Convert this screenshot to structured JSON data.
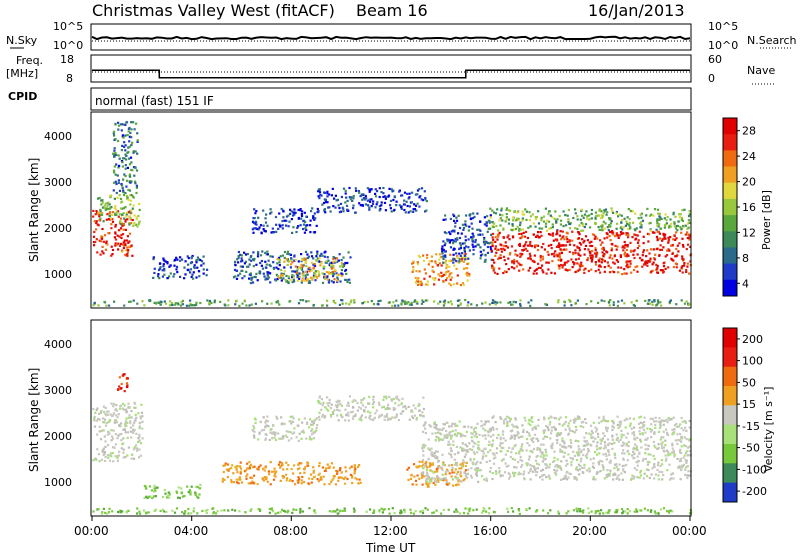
{
  "header": {
    "title": "Christmas Valley West (fitACF)",
    "beam": "Beam 16",
    "date": "16/Jan/2013"
  },
  "top_panels": {
    "nsky_label": "N.Sky",
    "nsky_ticks": [
      "10^5",
      "10^0"
    ],
    "nsearch_label": "N.Search",
    "nsearch_ticks": [
      "10^5",
      "10^0"
    ],
    "freq_label": "Freq.",
    "freq_unit": "[MHz]",
    "freq_ticks": [
      "18",
      "8"
    ],
    "nave_label": "Nave",
    "nave_ticks": [
      "60",
      "0"
    ],
    "cpid_label": "CPID",
    "cpid_value": "normal (fast) 151 IF",
    "freq_steps": [
      {
        "t0": 0,
        "t1": 2.7,
        "mhz": 12.2
      },
      {
        "t0": 2.7,
        "t1": 15.0,
        "mhz": 9.0
      },
      {
        "t0": 15.0,
        "t1": 24.0,
        "mhz": 12.2
      }
    ]
  },
  "chart_data": [
    {
      "type": "heatmap",
      "name": "power",
      "ylabel": "Slant Range [km]",
      "yticks": [
        "4000",
        "3000",
        "2000",
        "1000"
      ],
      "ylim": [
        180,
        4500
      ],
      "xlim": [
        0,
        24
      ],
      "colorbar_label": "Power [dB]",
      "colorbar_ticks": [
        "28",
        "24",
        "20",
        "16",
        "12",
        "8",
        "4"
      ],
      "colorbar_colors": [
        "#0000e0",
        "#1e3cc8",
        "#2a6a8a",
        "#3c8a5a",
        "#5aa83c",
        "#98c83c",
        "#e0d83c",
        "#f0a020",
        "#f06a10",
        "#e81e10",
        "#e00000"
      ],
      "regions": [
        {
          "t0": 0.0,
          "t1": 1.6,
          "r0": 1350,
          "r1": 2350,
          "level": 0.88
        },
        {
          "t0": 0.2,
          "t1": 1.9,
          "r0": 2000,
          "r1": 2700,
          "level": 0.45
        },
        {
          "t0": 0.8,
          "t1": 1.8,
          "r0": 2700,
          "r1": 4300,
          "level": 0.25
        },
        {
          "t0": 2.4,
          "t1": 4.6,
          "r0": 850,
          "r1": 1350,
          "level": 0.12
        },
        {
          "t0": 5.6,
          "t1": 10.4,
          "r0": 750,
          "r1": 1450,
          "level": 0.18
        },
        {
          "t0": 7.4,
          "t1": 10.0,
          "r0": 800,
          "r1": 1300,
          "level": 0.62
        },
        {
          "t0": 6.4,
          "t1": 9.0,
          "r0": 1850,
          "r1": 2400,
          "level": 0.12
        },
        {
          "t0": 9.0,
          "t1": 13.4,
          "r0": 2300,
          "r1": 2850,
          "level": 0.12
        },
        {
          "t0": 12.8,
          "t1": 15.1,
          "r0": 700,
          "r1": 1400,
          "level": 0.72
        },
        {
          "t0": 14.0,
          "t1": 16.0,
          "r0": 1200,
          "r1": 2300,
          "level": 0.16
        },
        {
          "t0": 15.8,
          "t1": 24.0,
          "r0": 1900,
          "r1": 2400,
          "level": 0.42
        },
        {
          "t0": 16.0,
          "t1": 24.0,
          "r0": 950,
          "r1": 1900,
          "level": 0.92
        },
        {
          "t0": 0.0,
          "t1": 24.0,
          "r0": 250,
          "r1": 380,
          "level": 0.35
        }
      ]
    },
    {
      "type": "heatmap",
      "name": "velocity",
      "ylabel": "Slant Range [km]",
      "yticks": [
        "4000",
        "3000",
        "2000",
        "1000"
      ],
      "ylim": [
        180,
        4500
      ],
      "xlim": [
        0,
        24
      ],
      "xticks": [
        "00:00",
        "04:00",
        "08:00",
        "12:00",
        "16:00",
        "20:00",
        "00:00"
      ],
      "xlabel": "Time UT",
      "colorbar_label": "Velocity [m s⁻¹]",
      "colorbar_ticks": [
        "200",
        "100",
        "50",
        "15",
        "-15",
        "-50",
        "-100",
        "-200"
      ],
      "colorbar_colors": [
        "#1e3cc8",
        "#3c8a5a",
        "#78c83c",
        "#a8e07a",
        "#c8c8c0",
        "#f0a020",
        "#f06a10",
        "#e81e10",
        "#e00000"
      ],
      "regions": [
        {
          "t0": 0.0,
          "t1": 2.0,
          "r0": 1400,
          "r1": 2700,
          "class": "grey"
        },
        {
          "t0": 1.0,
          "t1": 1.4,
          "r0": 2950,
          "r1": 3350,
          "class": "red"
        },
        {
          "t0": 2.0,
          "t1": 4.4,
          "r0": 600,
          "r1": 900,
          "class": "green"
        },
        {
          "t0": 5.2,
          "t1": 10.8,
          "r0": 900,
          "r1": 1400,
          "class": "orange"
        },
        {
          "t0": 6.4,
          "t1": 9.0,
          "r0": 1850,
          "r1": 2400,
          "class": "grey"
        },
        {
          "t0": 9.0,
          "t1": 13.4,
          "r0": 2300,
          "r1": 2850,
          "class": "grey"
        },
        {
          "t0": 12.6,
          "t1": 15.0,
          "r0": 850,
          "r1": 1400,
          "class": "orange"
        },
        {
          "t0": 13.2,
          "t1": 16.0,
          "r0": 950,
          "r1": 2300,
          "class": "grey"
        },
        {
          "t0": 16.0,
          "t1": 24.0,
          "r0": 1000,
          "r1": 2400,
          "class": "grey"
        },
        {
          "t0": 0.0,
          "t1": 24.0,
          "r0": 250,
          "r1": 380,
          "class": "green"
        }
      ]
    }
  ]
}
